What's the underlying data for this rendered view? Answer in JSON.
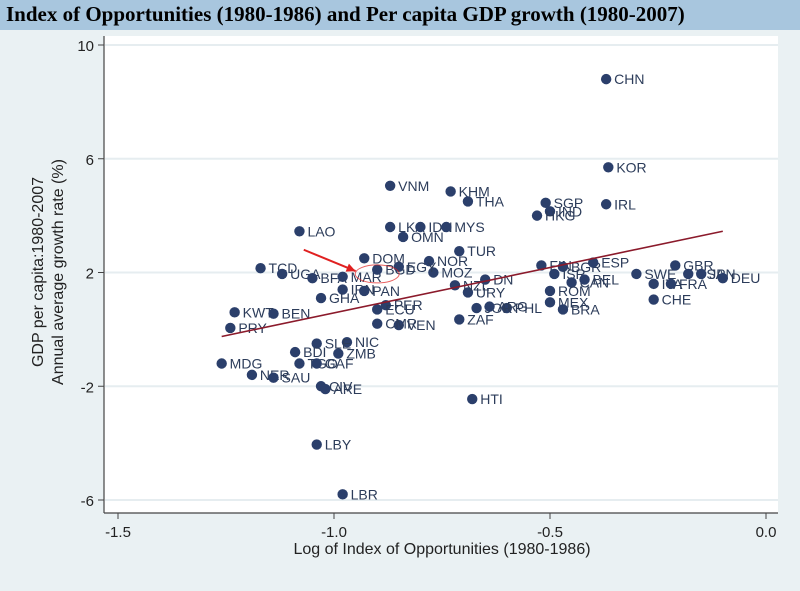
{
  "title": "Index of Opportunities (1980-1986) and Per capita GDP growth (1980-2007)",
  "colors": {
    "marker": "#2b3f6b",
    "fit_line": "#8b1a2b",
    "arrow": "#e02020",
    "title_bg": "#a8c6de",
    "background": "#eaf1f3",
    "plot_bg": "#ffffff",
    "grid": "#e6edf0"
  },
  "chart_data": {
    "type": "scatter",
    "title": "Index of Opportunities (1980-1986) and Per capita GDP growth (1980-2007)",
    "xlabel": "Log of Index of Opportunities (1980-1986)",
    "ylabel": [
      "GDP per capita:1980-2007",
      "Annual average growth rate (%)"
    ],
    "xlim": [
      -1.55,
      0.03
    ],
    "ylim": [
      -6.4,
      10.3
    ],
    "xticks": [
      "-1.5",
      "-1.0",
      "-0.5",
      "0.0"
    ],
    "xtick_values": [
      -1.5,
      -1.0,
      -0.5,
      0.0
    ],
    "yticks": [
      "10",
      "6",
      "2",
      "-2",
      "-6"
    ],
    "ytick_values": [
      10,
      6,
      2,
      -2,
      -6
    ],
    "grid": true,
    "fit_line": {
      "x": [
        -1.26,
        -0.1
      ],
      "y": [
        -0.25,
        3.45
      ]
    },
    "annotations": [
      {
        "type": "arrow",
        "from": [
          -1.07,
          2.8
        ],
        "to": [
          -0.95,
          2.05
        ]
      },
      {
        "type": "ellipse",
        "label": "IND",
        "center": [
          -0.9,
          1.95
        ]
      }
    ],
    "points": [
      {
        "label": "CHN",
        "x": -0.37,
        "y": 8.8
      },
      {
        "label": "KOR",
        "x": -0.365,
        "y": 5.7
      },
      {
        "label": "IRL",
        "x": -0.37,
        "y": 4.4
      },
      {
        "label": "VNM",
        "x": -0.87,
        "y": 5.05
      },
      {
        "label": "KHM",
        "x": -0.73,
        "y": 4.85
      },
      {
        "label": "THA",
        "x": -0.69,
        "y": 4.5
      },
      {
        "label": "SGP",
        "x": -0.51,
        "y": 4.45
      },
      {
        "label": "IND",
        "x": -0.5,
        "y": 4.15
      },
      {
        "label": "HKG",
        "x": -0.53,
        "y": 4.0
      },
      {
        "label": "LKA",
        "x": -0.87,
        "y": 3.6
      },
      {
        "label": "IDN",
        "x": -0.8,
        "y": 3.6
      },
      {
        "label": "MYS",
        "x": -0.74,
        "y": 3.6
      },
      {
        "label": "OMN",
        "x": -0.84,
        "y": 3.25
      },
      {
        "label": "LAO",
        "x": -1.08,
        "y": 3.45
      },
      {
        "label": "TUR",
        "x": -0.71,
        "y": 2.75
      },
      {
        "label": "NOR",
        "x": -0.78,
        "y": 2.4
      },
      {
        "label": "TCD",
        "x": -1.17,
        "y": 2.15
      },
      {
        "label": "UGA",
        "x": -1.12,
        "y": 1.95
      },
      {
        "label": "BFA",
        "x": -1.05,
        "y": 1.8
      },
      {
        "label": "MAR",
        "x": -0.98,
        "y": 1.85
      },
      {
        "label": "MOZ",
        "x": -0.77,
        "y": 2.0
      },
      {
        "label": "IRN",
        "x": -0.98,
        "y": 1.4
      },
      {
        "label": "PAN",
        "x": -0.93,
        "y": 1.35
      },
      {
        "label": "BGD",
        "x": -0.9,
        "y": 2.1
      },
      {
        "label": "EGY",
        "x": -0.85,
        "y": 2.2
      },
      {
        "label": "DOM",
        "x": -0.93,
        "y": 2.5
      },
      {
        "label": "GHA",
        "x": -1.03,
        "y": 1.1
      },
      {
        "label": "KWT",
        "x": -1.23,
        "y": 0.6
      },
      {
        "label": "BEN",
        "x": -1.14,
        "y": 0.55
      },
      {
        "label": "PRY",
        "x": -1.24,
        "y": 0.05
      },
      {
        "label": "PER",
        "x": -0.88,
        "y": 0.85
      },
      {
        "label": "ECU",
        "x": -0.9,
        "y": 0.7
      },
      {
        "label": "PHL",
        "x": -0.6,
        "y": 0.75
      },
      {
        "label": "JOR",
        "x": -0.67,
        "y": 0.75
      },
      {
        "label": "ARG",
        "x": -0.64,
        "y": 0.8
      },
      {
        "label": "URY",
        "x": -0.69,
        "y": 1.3
      },
      {
        "label": "NZL",
        "x": -0.72,
        "y": 1.55
      },
      {
        "label": "DN",
        "x": -0.65,
        "y": 1.75
      },
      {
        "label": "ZAF",
        "x": -0.71,
        "y": 0.35
      },
      {
        "label": "VEN",
        "x": -0.85,
        "y": 0.15
      },
      {
        "label": "CMR",
        "x": -0.9,
        "y": 0.2
      },
      {
        "label": "NIC",
        "x": -0.97,
        "y": -0.45
      },
      {
        "label": "SLE",
        "x": -1.04,
        "y": -0.5
      },
      {
        "label": "ZMB",
        "x": -0.99,
        "y": -0.85
      },
      {
        "label": "BDI",
        "x": -1.09,
        "y": -0.8
      },
      {
        "label": "MDG",
        "x": -1.26,
        "y": -1.2
      },
      {
        "label": "TGO",
        "x": -1.08,
        "y": -1.2
      },
      {
        "label": "GAF",
        "x": -1.04,
        "y": -1.2
      },
      {
        "label": "NER",
        "x": -1.19,
        "y": -1.6
      },
      {
        "label": "SAU",
        "x": -1.14,
        "y": -1.7
      },
      {
        "label": "CIV",
        "x": -1.03,
        "y": -2.0
      },
      {
        "label": "ARE",
        "x": -1.02,
        "y": -2.1
      },
      {
        "label": "HTI",
        "x": -0.68,
        "y": -2.45
      },
      {
        "label": "LBY",
        "x": -1.04,
        "y": -4.05
      },
      {
        "label": "LBR",
        "x": -0.98,
        "y": -5.8
      },
      {
        "label": "FIN",
        "x": -0.52,
        "y": 2.25
      },
      {
        "label": "BGR",
        "x": -0.47,
        "y": 2.2
      },
      {
        "label": "ESP",
        "x": -0.4,
        "y": 2.35
      },
      {
        "label": "ISR",
        "x": -0.49,
        "y": 1.95
      },
      {
        "label": "CAN",
        "x": -0.45,
        "y": 1.65
      },
      {
        "label": "BEL",
        "x": -0.42,
        "y": 1.75
      },
      {
        "label": "SWE",
        "x": -0.3,
        "y": 1.95
      },
      {
        "label": "ITA",
        "x": -0.26,
        "y": 1.6
      },
      {
        "label": "FRA",
        "x": -0.22,
        "y": 1.6
      },
      {
        "label": "GBR",
        "x": -0.21,
        "y": 2.25
      },
      {
        "label": "USA",
        "x": -0.18,
        "y": 1.95
      },
      {
        "label": "JPN",
        "x": -0.15,
        "y": 1.95
      },
      {
        "label": "DEU",
        "x": -0.1,
        "y": 1.8
      },
      {
        "label": "CHE",
        "x": -0.26,
        "y": 1.05
      },
      {
        "label": "ROM",
        "x": -0.5,
        "y": 1.35
      },
      {
        "label": "MEX",
        "x": -0.5,
        "y": 0.95
      },
      {
        "label": "BRA",
        "x": -0.47,
        "y": 0.7
      }
    ]
  }
}
